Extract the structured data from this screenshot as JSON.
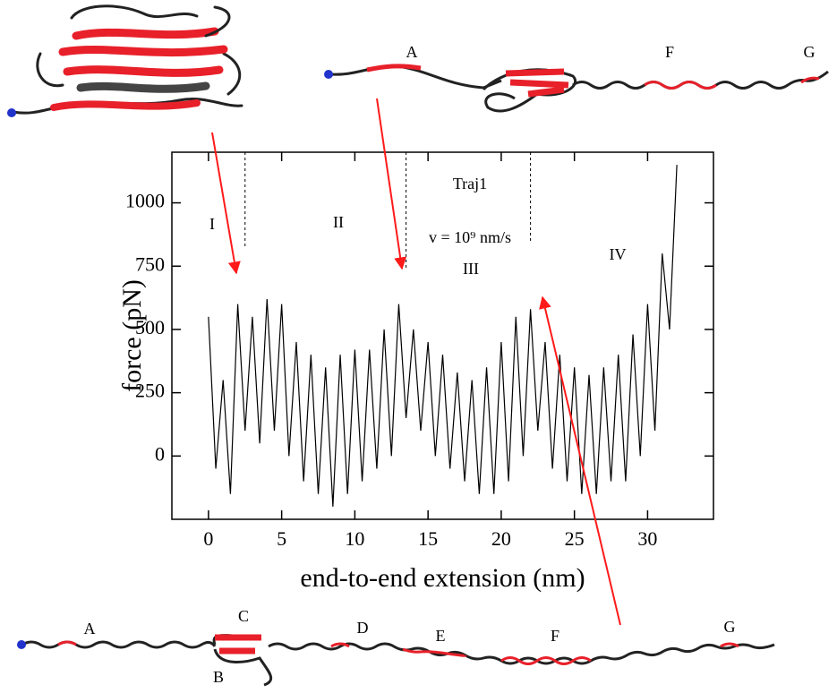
{
  "chart_data": {
    "type": "line",
    "xlabel": "end-to-end extension (nm)",
    "ylabel": "force (pN)",
    "x": [
      0,
      0.5,
      1,
      1.5,
      2,
      2.5,
      3,
      3.5,
      4,
      4.5,
      5,
      5.5,
      6,
      6.5,
      7,
      7.5,
      8,
      8.5,
      9,
      9.5,
      10,
      10.5,
      11,
      11.5,
      12,
      12.5,
      13,
      13.5,
      14,
      14.5,
      15,
      15.5,
      16,
      16.5,
      17,
      17.5,
      18,
      18.5,
      19,
      19.5,
      20,
      20.5,
      21,
      21.5,
      22,
      22.5,
      23,
      23.5,
      24,
      24.5,
      25,
      25.5,
      26,
      26.5,
      27,
      27.5,
      28,
      28.5,
      29,
      29.5,
      30,
      30.5,
      31,
      31.5,
      32
    ],
    "series": [
      {
        "color": "#000000",
        "values": [
          550,
          -50,
          300,
          -150,
          600,
          100,
          550,
          50,
          620,
          100,
          600,
          0,
          450,
          -100,
          400,
          -150,
          350,
          -200,
          400,
          -150,
          420,
          -100,
          420,
          -50,
          500,
          0,
          600,
          150,
          500,
          100,
          450,
          0,
          400,
          -50,
          330,
          -100,
          300,
          -150,
          350,
          -150,
          450,
          -100,
          550,
          0,
          580,
          100,
          450,
          -50,
          400,
          -100,
          350,
          -150,
          320,
          -150,
          350,
          -100,
          400,
          -100,
          480,
          0,
          600,
          100,
          800,
          500,
          1150
        ]
      }
    ],
    "xlim": [
      -2.5,
      34.5
    ],
    "ylim": [
      -250,
      1200
    ],
    "xticks": [
      0,
      5,
      10,
      15,
      20,
      25,
      30
    ],
    "yticks": [
      0,
      250,
      500,
      750,
      1000
    ],
    "dividers": [
      2.5,
      13.5,
      22
    ],
    "regions": [
      "I",
      "II",
      "III",
      "IV"
    ],
    "annotations": [
      "Traj1",
      "v = 10⁹ nm/s"
    ]
  },
  "structures": {
    "top_right": [
      "A",
      "F",
      "G"
    ],
    "bottom": [
      "A",
      "B",
      "C",
      "D",
      "E",
      "F",
      "G"
    ]
  }
}
